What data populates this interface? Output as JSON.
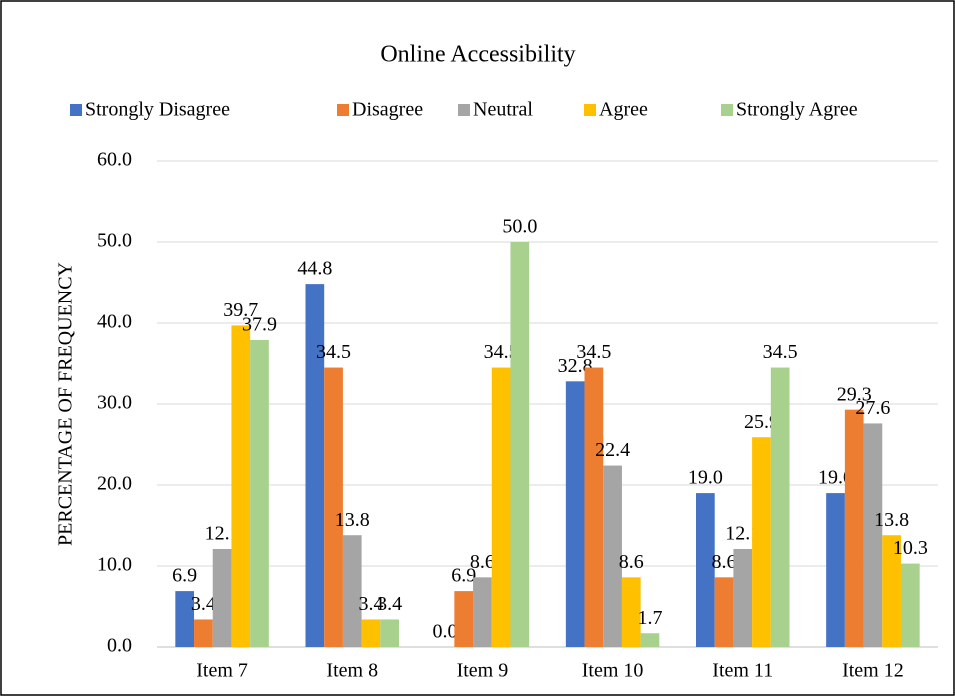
{
  "chart_data": {
    "type": "bar",
    "title": "Online Accessibility",
    "ylabel": "PERCENTAGE OF FREQUENCY",
    "categories": [
      "Item 7",
      "Item 8",
      "Item 9",
      "Item 10",
      "Item 11",
      "Item 12"
    ],
    "series": [
      {
        "name": "Strongly Disagree",
        "color": "#4472c4",
        "values": [
          6.9,
          44.8,
          0,
          32.8,
          19,
          19
        ],
        "value_labels": [
          "6.9",
          "44.8",
          "0.0",
          "32.8",
          "19.0",
          "19.0"
        ]
      },
      {
        "name": "Disagree",
        "color": "#ed7d31",
        "values": [
          3.4,
          34.5,
          6.9,
          34.5,
          8.6,
          29.3
        ],
        "value_labels": [
          "3.4",
          "34.5",
          "6.9",
          "34.5",
          "8.6",
          "29.3"
        ]
      },
      {
        "name": "Neutral",
        "color": "#a5a5a5",
        "values": [
          12.1,
          13.8,
          8.6,
          22.4,
          12.1,
          27.6
        ],
        "value_labels": [
          "12.1",
          "13.8",
          "8.6",
          "22.4",
          "12.1",
          "27.6"
        ]
      },
      {
        "name": "Agree",
        "color": "#ffc000",
        "values": [
          39.7,
          3.4,
          34.5,
          8.6,
          25.9,
          13.8
        ],
        "value_labels": [
          "39.7",
          "3.4",
          "34.5",
          "8.6",
          "25.9",
          "13.8"
        ]
      },
      {
        "name": "Strongly Agree",
        "color": "#a9d18e",
        "values": [
          37.9,
          3.4,
          50,
          1.7,
          34.5,
          10.3
        ],
        "value_labels": [
          "37.9",
          "3.4",
          "50.0",
          "1.7",
          "34.5",
          "10.3"
        ]
      }
    ],
    "ylim": [
      0,
      60
    ],
    "yticks": [
      {
        "value": 0,
        "label": "0.0"
      },
      {
        "value": 10,
        "label": "10.0"
      },
      {
        "value": 20,
        "label": "20.0"
      },
      {
        "value": 30,
        "label": "30.0"
      },
      {
        "value": 40,
        "label": "40.0"
      },
      {
        "value": 50,
        "label": "50.0"
      },
      {
        "value": 60,
        "label": "60.0"
      }
    ],
    "grid": true,
    "legend": "top"
  }
}
